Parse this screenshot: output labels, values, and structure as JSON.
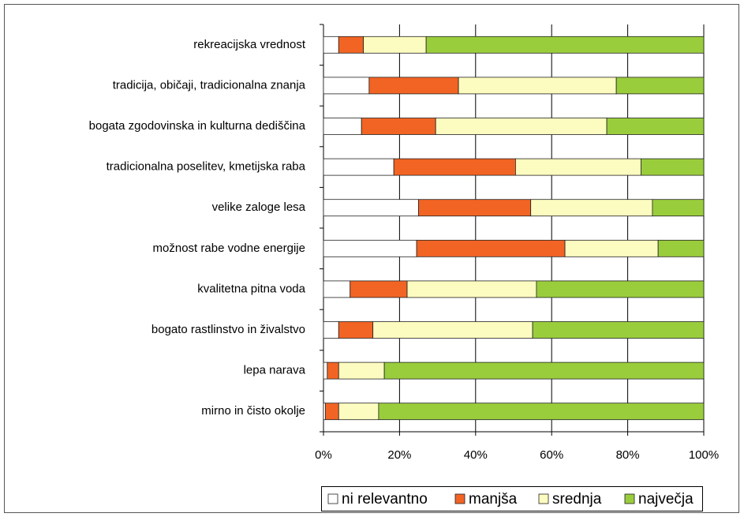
{
  "chart_data": {
    "type": "bar",
    "orientation": "horizontal",
    "stacked": true,
    "categories": [
      "rekreacijska vrednost",
      "tradicija, običaji, tradicionalna znanja",
      "bogata zgodovinska in kulturna dediščina",
      "tradicionalna poselitev, kmetijska raba",
      "velike zaloge lesa",
      "možnost rabe vodne energije",
      "kvalitetna pitna voda",
      "bogato rastlinstvo in živalstvo",
      "lepa narava",
      "mirno in čisto okolje"
    ],
    "series": [
      {
        "name": "ni relevantno",
        "color": "#ffffff",
        "values": [
          4,
          12,
          10,
          18.5,
          25,
          24.5,
          7,
          4,
          1,
          0.5
        ]
      },
      {
        "name": "manjša",
        "color": "#f26424",
        "values": [
          6.5,
          23.5,
          19.5,
          32,
          29.5,
          39,
          15,
          9,
          3,
          3.5
        ]
      },
      {
        "name": "srednja",
        "color": "#fdfcc0",
        "values": [
          16.5,
          41.5,
          45,
          33,
          32,
          24.5,
          34,
          42,
          12,
          10.5
        ]
      },
      {
        "name": "največja",
        "color": "#9acd3c",
        "values": [
          73,
          23,
          25.5,
          16.5,
          13.5,
          12,
          44,
          45,
          84,
          85.5
        ]
      }
    ],
    "xlim": [
      0,
      100
    ],
    "xticks": [
      {
        "value": 0,
        "label": "0%"
      },
      {
        "value": 20,
        "label": "20%"
      },
      {
        "value": 40,
        "label": "40%"
      },
      {
        "value": 60,
        "label": "60%"
      },
      {
        "value": 80,
        "label": "80%"
      },
      {
        "value": 100,
        "label": "100%"
      }
    ],
    "grid": true,
    "legend": "bottom"
  }
}
